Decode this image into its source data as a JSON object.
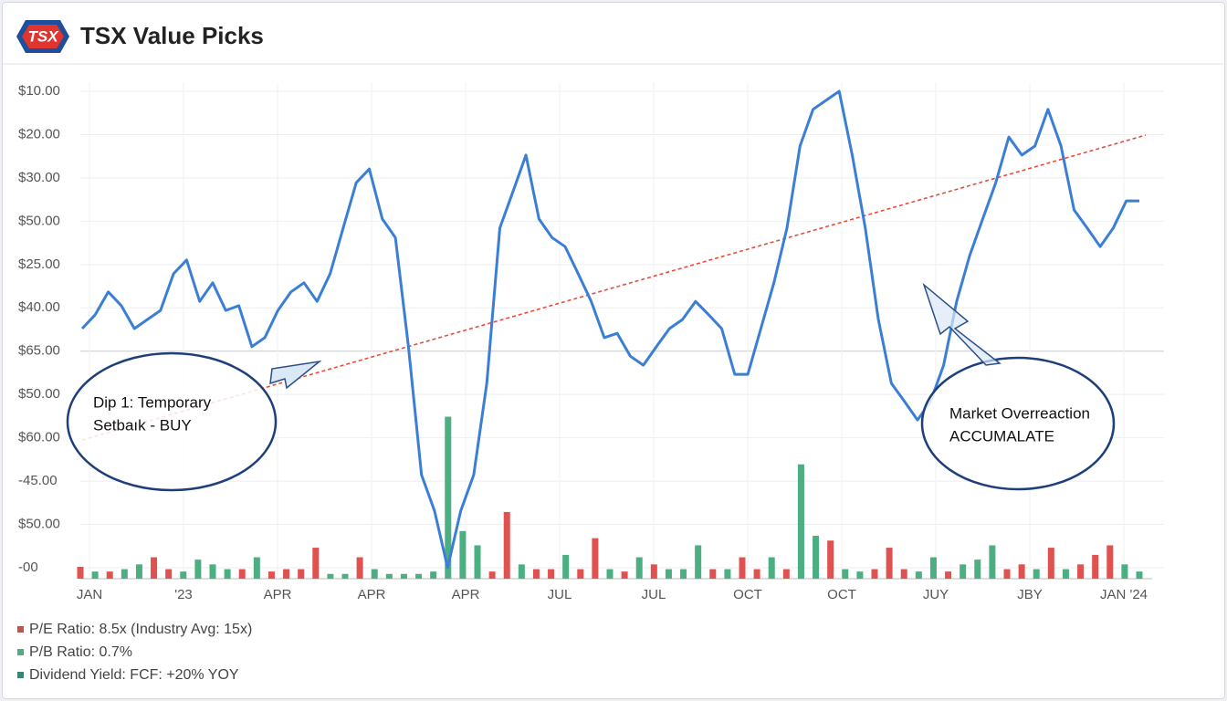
{
  "header": {
    "logo": "TSX",
    "title": "TSX Value Picks"
  },
  "chart_data": {
    "type": "line",
    "y_labels": [
      "$10.00",
      "$20.00",
      "$30.00",
      "$50.00",
      "$25.00",
      "$40.00",
      "$65.00",
      "$50.00",
      "$60.00",
      "-45.00",
      "$50.00",
      "-00"
    ],
    "x_labels": [
      "JAN",
      "'23",
      "APR",
      "APR",
      "APR",
      "JUL",
      "JUL",
      "OCT",
      "OCT",
      "JUY",
      "JBY",
      "JAN '24"
    ],
    "ylim": [
      0,
      100
    ],
    "series": [
      {
        "color": "#3a7fd5",
        "values": [
          50.2,
          53.1,
          57.9,
          55.0,
          50.2,
          52.1,
          54.0,
          61.7,
          64.6,
          55.9,
          59.8,
          54.0,
          55.0,
          46.4,
          48.3,
          54.0,
          57.9,
          59.8,
          55.9,
          61.7,
          71.3,
          80.8,
          83.7,
          73.2,
          69.3,
          46.4,
          19.5,
          11.9,
          0,
          11.9,
          19.5,
          38.7,
          71.3,
          78.9,
          86.6,
          73.2,
          69.3,
          67.4,
          61.7,
          55.9,
          48.3,
          49.2,
          44.4,
          42.5,
          46.4,
          50.2,
          52.1,
          55.9,
          53.1,
          50.2,
          40.6,
          40.6,
          50.2,
          59.8,
          71.3,
          88.5,
          96.2,
          98.1,
          100,
          86.6,
          71.3,
          52.1,
          38.7,
          34.9,
          31.0,
          34.9,
          42.5,
          55.9,
          65.5,
          73.2,
          80.8,
          90.4,
          86.6,
          88.5,
          96.2,
          88.5,
          75.1,
          71.3,
          67.4,
          71.3,
          77.0,
          77.0
        ]
      }
    ],
    "volume": {
      "values": [
        2.5,
        1.5,
        1.5,
        2,
        3,
        4.5,
        2,
        1.5,
        4,
        3,
        2,
        2,
        4.5,
        1.5,
        2,
        2,
        6.5,
        1,
        1,
        4.5,
        2,
        1,
        1,
        1,
        1.5,
        34,
        10,
        7,
        1.5,
        14,
        3,
        2,
        2,
        5,
        2,
        8.5,
        2,
        1.5,
        4.5,
        3,
        2,
        2,
        7,
        2,
        2,
        4.5,
        2,
        4.5,
        2,
        24,
        9,
        8,
        2,
        1.5,
        2,
        6.5,
        2,
        1.5,
        4.5,
        1.5,
        3,
        4,
        7,
        2,
        3,
        2,
        6.5,
        2,
        3,
        5,
        7,
        3,
        1.5
      ],
      "colors": [
        "#e0524f",
        "#4caf82",
        "#e0524f",
        "#4caf82",
        "#4caf82",
        "#e0524f",
        "#e0524f",
        "#4caf82",
        "#4caf82",
        "#4caf82",
        "#4caf82",
        "#e0524f",
        "#4caf82",
        "#e0524f",
        "#e0524f",
        "#e0524f",
        "#e0524f",
        "#4caf82",
        "#4caf82",
        "#e0524f",
        "#4caf82",
        "#4caf82",
        "#4caf82",
        "#4caf82",
        "#4caf82",
        "#4caf82",
        "#4caf82",
        "#4caf82",
        "#e0524f",
        "#e0524f",
        "#4caf82",
        "#e0524f",
        "#e0524f",
        "#4caf82",
        "#e0524f",
        "#e0524f",
        "#4caf82",
        "#e0524f",
        "#4caf82",
        "#e0524f",
        "#4caf82",
        "#4caf82",
        "#4caf82",
        "#e0524f",
        "#4caf82",
        "#e0524f",
        "#e0524f",
        "#4caf82",
        "#e0524f",
        "#4caf82",
        "#4caf82",
        "#e0524f",
        "#4caf82",
        "#4caf82",
        "#e0524f",
        "#e0524f",
        "#e0524f",
        "#4caf82",
        "#4caf82",
        "#e0524f",
        "#4caf82",
        "#4caf82",
        "#4caf82",
        "#e0524f",
        "#e0524f",
        "#4caf82",
        "#e0524f",
        "#4caf82",
        "#e0524f",
        "#e0524f",
        "#e0524f",
        "#4caf82",
        "#4caf82"
      ]
    },
    "trendline": {
      "color": "#e74c3c",
      "values": [
        26.8,
        90.8
      ]
    },
    "annotations": [
      {
        "lines": [
          "Dip 1: Temporary",
          "Setbaık - BUY"
        ]
      },
      {
        "lines": [
          "Market Overreaction",
          "ACCUMALATE"
        ]
      }
    ],
    "legend": [
      {
        "name": "P/E Ratio: 8.5x (Industry Avg: 15x)",
        "color": "#c0564b"
      },
      {
        "name": "P/B Ratio: 0.7%",
        "color": "#4caf82"
      },
      {
        "name": "Dividend Yield: FCF: +20% YOY",
        "color": "#2e8b7a"
      }
    ]
  }
}
